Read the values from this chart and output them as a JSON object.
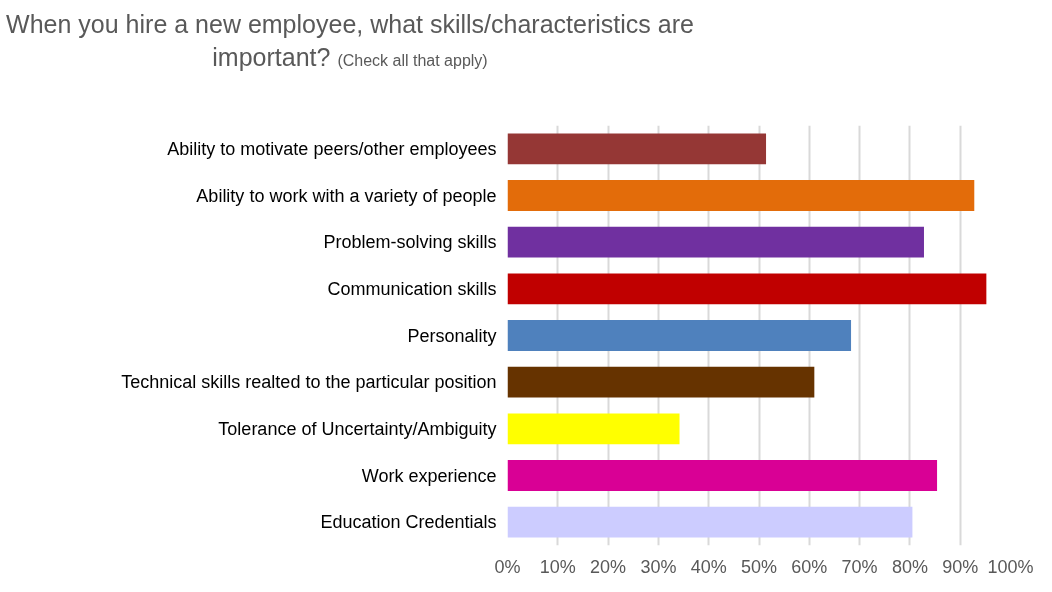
{
  "chart_data": {
    "type": "bar",
    "orientation": "horizontal",
    "title": "When you hire a new employee, what skills/characteristics are important?",
    "subtitle": "(Check all that apply)",
    "categories": [
      "Ability to motivate peers/other employees",
      "Ability to work with a variety of people",
      "Problem-solving skills",
      "Communication skills",
      "Personality",
      "Technical skills realted to the particular position",
      "Tolerance of Uncertainty/Ambiguity",
      "Work experience",
      "Education Credentials"
    ],
    "values": [
      51.4,
      92.8,
      82.8,
      95.2,
      68.3,
      61.0,
      34.2,
      85.4,
      80.5
    ],
    "colors": [
      "#953735",
      "#e36c0a",
      "#7030a0",
      "#c00000",
      "#4f81bd",
      "#663300",
      "#ffff00",
      "#d90095",
      "#ccccff"
    ],
    "xlim": [
      0,
      100
    ],
    "xticks": [
      {
        "value": 0,
        "label": "0%"
      },
      {
        "value": 10,
        "label": "10%"
      },
      {
        "value": 20,
        "label": "20%"
      },
      {
        "value": 30,
        "label": "30%"
      },
      {
        "value": 40,
        "label": "40%"
      },
      {
        "value": 50,
        "label": "50%"
      },
      {
        "value": 60,
        "label": "60%"
      },
      {
        "value": 70,
        "label": "70%"
      },
      {
        "value": 80,
        "label": "80%"
      },
      {
        "value": 90,
        "label": "90%"
      },
      {
        "value": 100,
        "label": "100%"
      }
    ],
    "grid": "x"
  }
}
